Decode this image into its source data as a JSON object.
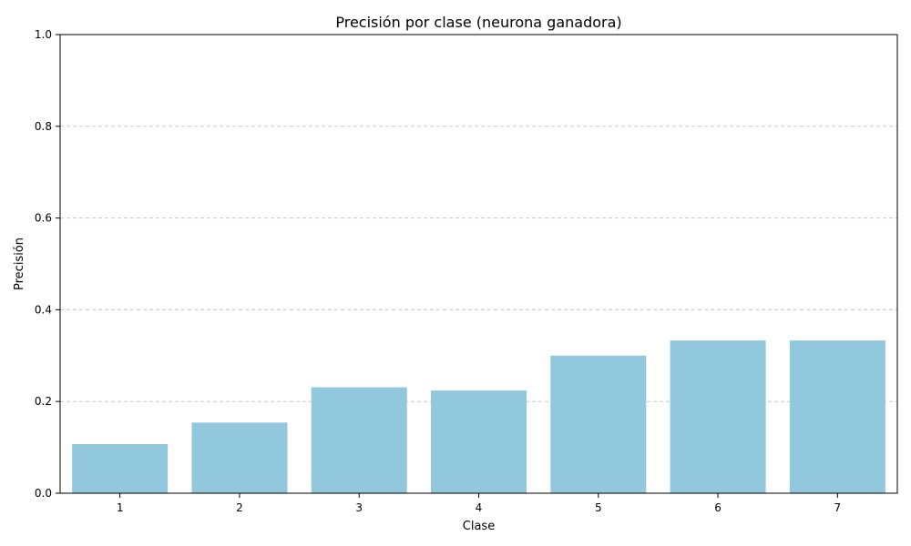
{
  "chart_data": {
    "type": "bar",
    "title": "Precisión por clase (neurona ganadora)",
    "xlabel": "Clase",
    "ylabel": "Precisión",
    "categories": [
      "1",
      "2",
      "3",
      "4",
      "5",
      "6",
      "7"
    ],
    "values": [
      0.107,
      0.154,
      0.231,
      0.224,
      0.3,
      0.333,
      0.333
    ],
    "ylim": [
      0,
      1
    ],
    "yticks": [
      "0.0",
      "0.2",
      "0.4",
      "0.6",
      "0.8",
      "1.0"
    ],
    "grid": "y, dashed",
    "legend": "none",
    "colors": {
      "bar": "#92c8de",
      "grid": "#c8c8c8",
      "axis": "#000000"
    }
  }
}
